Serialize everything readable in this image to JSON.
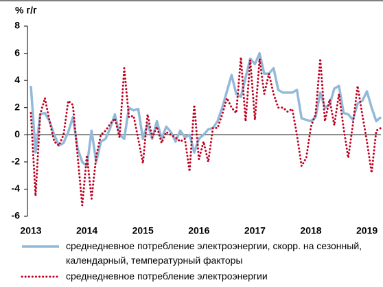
{
  "chart_data": {
    "type": "line",
    "ylabel": "% г/г",
    "categories": [
      "2013",
      null,
      null,
      null,
      null,
      null,
      null,
      null,
      null,
      null,
      null,
      null,
      "2014",
      null,
      null,
      null,
      null,
      null,
      null,
      null,
      null,
      null,
      null,
      null,
      "2015",
      null,
      null,
      null,
      null,
      null,
      null,
      null,
      null,
      null,
      null,
      null,
      "2016",
      null,
      null,
      null,
      null,
      null,
      null,
      null,
      null,
      null,
      null,
      null,
      "2017",
      null,
      null,
      null,
      null,
      null,
      null,
      null,
      null,
      null,
      null,
      null,
      "2018",
      null,
      null,
      null,
      null,
      null,
      null,
      null,
      null,
      null,
      null,
      null,
      "2019",
      null,
      null,
      null
    ],
    "series": [
      {
        "name": "среднедневное потребление электроэнергии, скорр. на сезонный, календарный, температурный факторы",
        "color": "#93b9d9",
        "style": "solid",
        "values": [
          3.6,
          -1.3,
          1.5,
          1.6,
          1.0,
          0.0,
          -0.8,
          -0.6,
          0.2,
          1.3,
          -1.0,
          -2.0,
          -2.3,
          0.3,
          -2.0,
          -0.5,
          -0.3,
          0.5,
          1.5,
          0.0,
          -0.3,
          2.0,
          1.8,
          1.9,
          -0.3,
          0.8,
          -0.3,
          1.0,
          -0.3,
          0.6,
          0.2,
          -0.5,
          0.3,
          -0.2,
          0.0,
          -1.3,
          -0.3,
          0.0,
          0.4,
          0.5,
          1.0,
          2.0,
          3.2,
          4.4,
          3.0,
          2.8,
          4.2,
          5.6,
          5.2,
          6.0,
          4.5,
          4.5,
          4.9,
          3.3,
          3.1,
          3.1,
          3.1,
          3.3,
          1.2,
          1.1,
          1.0,
          1.3,
          3.1,
          2.0,
          2.2,
          3.4,
          3.6,
          1.6,
          1.5,
          1.1,
          2.3,
          2.5,
          3.2,
          2.0,
          1.0,
          1.3
        ]
      },
      {
        "name": "среднедневное потребление электроэнергии",
        "color": "#c00020",
        "style": "dotted",
        "values": [
          1.6,
          -4.5,
          1.5,
          2.7,
          1.0,
          -0.5,
          -0.8,
          0.0,
          2.5,
          2.2,
          -1.5,
          -5.2,
          -1.5,
          -4.7,
          -1.6,
          0.0,
          0.3,
          0.8,
          1.2,
          -0.2,
          4.9,
          1.3,
          1.4,
          -0.3,
          -2.1,
          1.5,
          -0.2,
          0.6,
          -0.6,
          0.2,
          0.0,
          -0.2,
          -0.5,
          -0.3,
          -2.7,
          2.2,
          -1.8,
          -0.5,
          -2.0,
          0.5,
          0.5,
          1.5,
          2.7,
          2.0,
          1.6,
          5.7,
          1.0,
          5.5,
          1.1,
          5.6,
          3.0,
          4.5,
          3.0,
          2.0,
          2.0,
          1.7,
          1.9,
          0.0,
          -2.3,
          -1.7,
          0.6,
          1.5,
          5.6,
          1.0,
          2.6,
          0.7,
          3.0,
          0.5,
          -1.7,
          0.8,
          3.6,
          1.5,
          -0.5,
          -2.8,
          0.3,
          0.5
        ]
      }
    ],
    "ylim": [
      -6,
      8
    ],
    "yticks": [
      -6,
      -4,
      -2,
      0,
      2,
      4,
      6,
      8
    ]
  }
}
